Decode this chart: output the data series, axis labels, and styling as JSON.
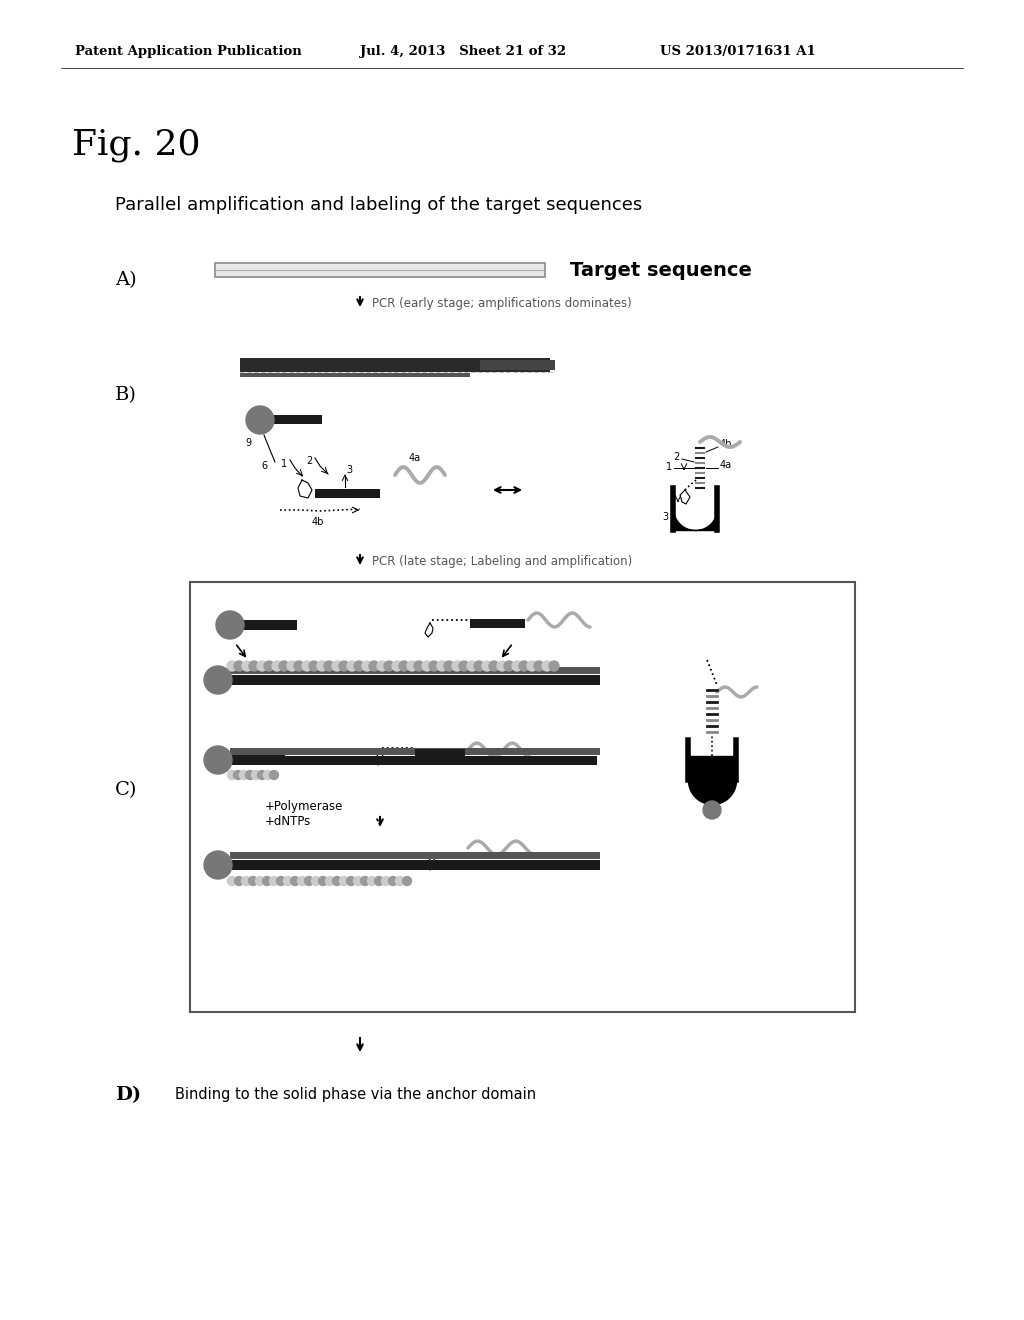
{
  "background_color": "#ffffff",
  "header_left": "Patent Application Publication",
  "header_mid": "Jul. 4, 2013   Sheet 21 of 32",
  "header_right": "US 2013/0171631 A1",
  "fig_label": "Fig. 20",
  "subtitle": "Parallel amplification and labeling of the target sequences",
  "label_A": "A)",
  "label_B": "B)",
  "label_C": "C)",
  "label_D": "D)",
  "target_seq_label": "Target sequence",
  "pcr_early": "PCR (early stage; amplifications dominates)",
  "pcr_late": "PCR (late stage; Labeling and amplification)",
  "polymerase_label": "+Polymerase\n+dNTPs",
  "binding_label": "Binding to the solid phase via the anchor domain"
}
